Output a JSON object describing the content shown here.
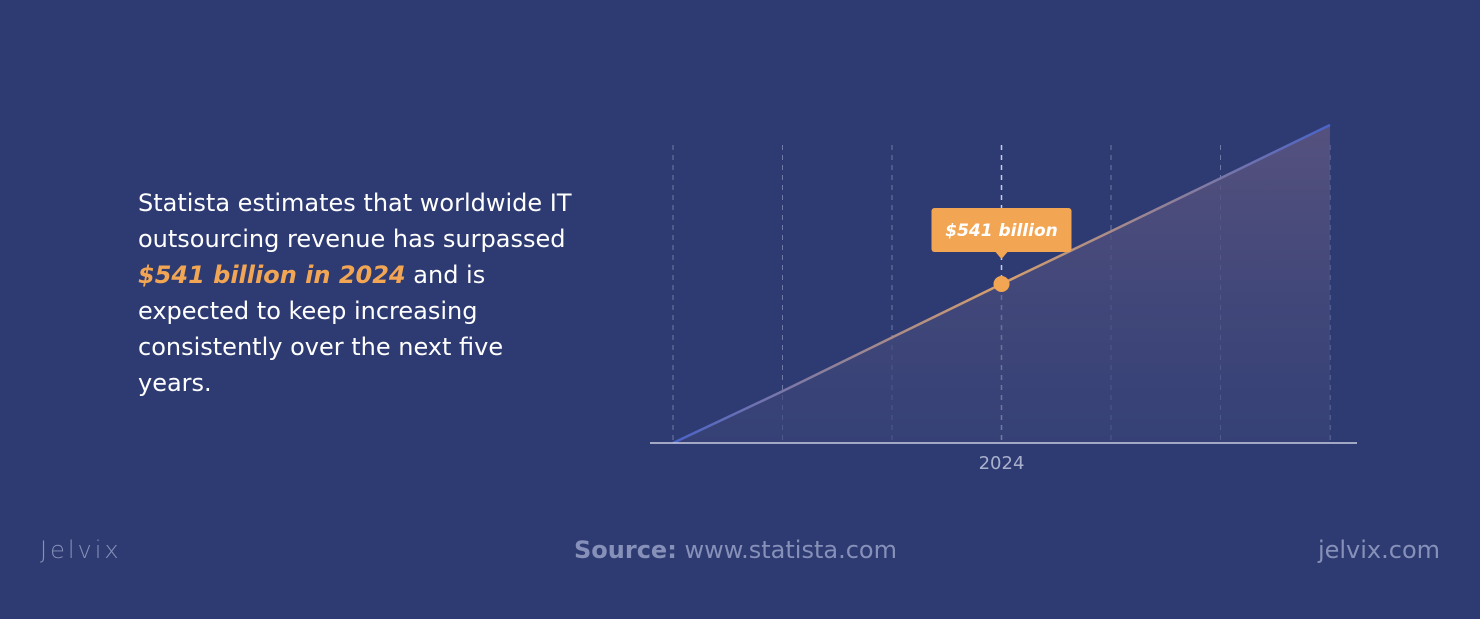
{
  "text": {
    "before": "Statista estimates that worldwide IT outsourcing revenue has surpassed ",
    "highlight": "$541 billion in 2024",
    "after": " and is expected to keep increasing consistently over the next five years."
  },
  "chart_data": {
    "type": "line",
    "categories": [
      null,
      null,
      null,
      "2024",
      null,
      null,
      null
    ],
    "values": [
      0,
      176,
      359,
      541,
      720,
      901,
      1082
    ],
    "value_labels": [
      null,
      null,
      null,
      "$541 billion",
      null,
      null,
      null
    ],
    "color": "#f2a654",
    "ylim": [
      0,
      1082
    ],
    "grid": true
  },
  "footer": {
    "logo": "Jelvix",
    "source_label": "Source:",
    "source": "www.statista.com",
    "site": "jelvix.com"
  }
}
